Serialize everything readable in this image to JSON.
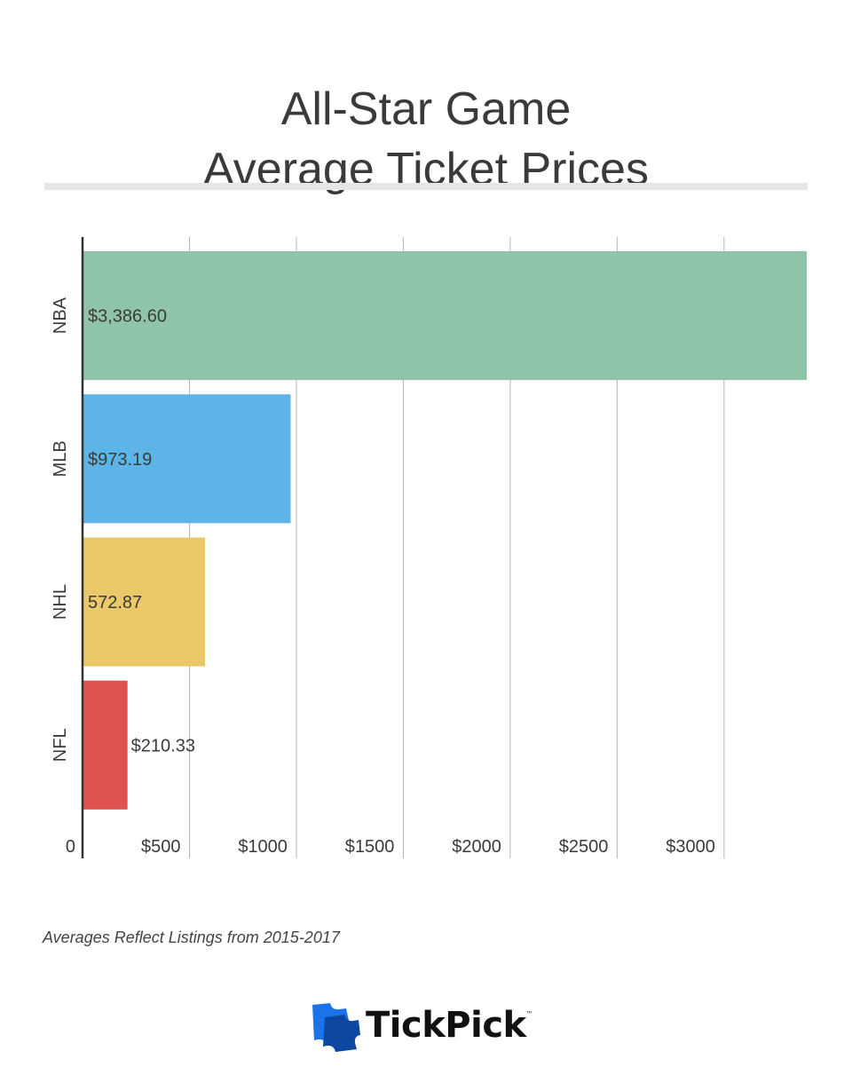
{
  "title": {
    "line1": "All-Star Game",
    "line2": "Average Ticket Prices"
  },
  "chart_data": {
    "type": "bar",
    "orientation": "horizontal",
    "title": "All-Star Game Average Ticket Prices",
    "categories": [
      "NBA",
      "MLB",
      "NHL",
      "NFL"
    ],
    "values": [
      3386.6,
      973.19,
      572.87,
      210.33
    ],
    "value_labels": [
      "$3,386.60",
      "$973.19",
      "572.87",
      "$210.33"
    ],
    "colors": [
      "#8fc4a8",
      "#5db4e6",
      "#ebc86a",
      "#de5252"
    ],
    "xlim": [
      0,
      3386.6
    ],
    "xticks": [
      0,
      500,
      1000,
      1500,
      2000,
      2500,
      3000
    ],
    "xtick_labels": [
      "0",
      "$500",
      "$1000",
      "$1500",
      "$2000",
      "$2500",
      "$3000"
    ],
    "grid": true,
    "xlabel": "",
    "ylabel": ""
  },
  "footnote": "Averages Reflect Listings from 2015-2017",
  "brand": {
    "name": "TickPick",
    "trademark": "™",
    "icon": "ticket-logo-icon",
    "icon_color": "#1a73e8"
  }
}
